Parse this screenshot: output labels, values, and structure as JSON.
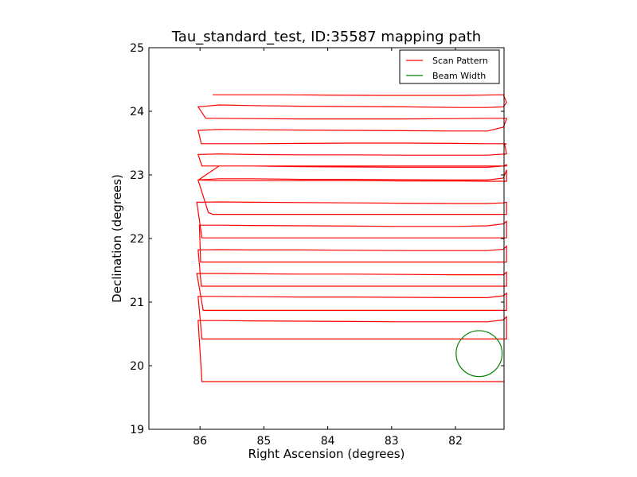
{
  "chart_data": {
    "type": "line",
    "title": "Tau_standard_test, ID:35587 mapping path",
    "xlabel": "Right Ascension (degrees)",
    "ylabel": "Declination (degrees)",
    "xlim": [
      86.8,
      81.24
    ],
    "ylim": [
      19,
      25
    ],
    "x_reversed": true,
    "xticks": [
      86,
      85,
      84,
      83,
      82
    ],
    "yticks": [
      19,
      20,
      21,
      22,
      23,
      24,
      25
    ],
    "grid": false,
    "legend_position": "top-right",
    "series": [
      {
        "name": "Scan Pattern",
        "color": "#ff0000",
        "x": [
          85.8,
          85.5,
          84.8,
          84.0,
          83.2,
          82.4,
          81.9,
          81.24,
          81.25,
          81.2,
          81.25,
          81.5,
          82.0,
          82.8,
          83.6,
          84.4,
          85.2,
          85.7,
          86.03,
          85.91,
          85.8,
          85.2,
          84.4,
          83.6,
          82.8,
          82.0,
          81.5,
          81.28,
          81.2,
          81.2,
          81.25,
          81.5,
          82.0,
          82.8,
          83.6,
          84.4,
          85.2,
          85.7,
          86.03,
          85.98,
          85.8,
          85.2,
          84.4,
          83.6,
          82.8,
          82.0,
          81.5,
          81.25,
          81.2,
          81.23,
          81.2,
          81.5,
          82.0,
          82.8,
          83.6,
          84.4,
          85.2,
          85.7,
          86.03,
          85.97,
          85.8,
          85.2,
          84.4,
          83.6,
          82.8,
          82.0,
          81.5,
          81.26,
          81.2,
          81.2,
          81.25,
          81.5,
          82.0,
          82.8,
          83.6,
          84.4,
          85.2,
          85.7,
          86.01,
          86.0,
          85.8,
          85.2,
          84.4,
          83.6,
          82.8,
          82.0,
          81.5,
          81.25,
          81.2,
          81.2,
          81.25,
          81.5,
          82.0,
          82.8,
          83.6,
          84.4,
          85.2,
          85.7,
          86.03,
          85.87,
          85.8,
          85.2,
          84.4,
          83.6,
          82.8,
          82.0,
          81.5,
          81.25,
          81.2,
          81.2,
          81.25,
          81.5,
          82.0,
          82.8,
          83.6,
          84.4,
          85.2,
          85.7,
          86.05,
          85.97,
          85.8,
          85.2,
          84.4,
          83.6,
          82.8,
          82.0,
          81.5,
          81.25,
          81.2,
          81.2,
          81.25,
          81.5,
          82.0,
          82.8,
          83.6,
          84.4,
          85.2,
          85.7,
          86.01,
          85.99,
          85.8,
          85.2,
          84.4,
          83.6,
          82.8,
          82.0,
          81.5,
          81.25,
          81.2,
          81.2,
          81.25,
          81.5,
          82.0,
          82.8,
          83.6,
          84.4,
          85.2,
          85.7,
          86.03,
          85.98,
          85.8,
          85.2,
          84.4,
          83.6,
          82.8,
          82.0,
          81.5,
          81.25,
          81.2,
          81.2,
          81.25,
          81.5,
          82.0,
          82.8,
          83.6,
          84.4,
          85.2,
          85.7,
          86.05,
          85.95,
          85.8,
          85.2,
          84.4,
          83.6,
          82.8,
          82.0,
          81.5,
          81.25,
          81.2,
          81.2,
          81.25,
          81.5,
          82.0,
          82.8,
          83.6,
          84.4,
          85.2,
          85.7,
          86.03,
          85.97,
          85.8,
          85.2,
          84.4,
          83.6,
          82.8,
          82.0,
          81.5,
          81.25,
          81.2,
          81.2,
          81.25,
          81.5,
          82.0,
          82.8,
          83.6,
          84.4,
          85.2,
          85.7,
          86.03,
          85.97,
          85.8,
          85.2,
          84.4,
          83.6,
          82.8,
          82.0,
          81.5,
          81.24
        ],
        "y": [
          24.26,
          24.26,
          24.26,
          24.255,
          24.25,
          24.25,
          24.25,
          24.26,
          24.26,
          24.14,
          24.07,
          24.06,
          24.06,
          24.07,
          24.075,
          24.08,
          24.09,
          24.1,
          24.07,
          23.89,
          23.89,
          23.885,
          23.88,
          23.88,
          23.88,
          23.885,
          23.89,
          23.89,
          23.89,
          23.88,
          23.75,
          23.69,
          23.69,
          23.695,
          23.7,
          23.705,
          23.71,
          23.715,
          23.7,
          23.49,
          23.49,
          23.49,
          23.495,
          23.5,
          23.5,
          23.495,
          23.49,
          23.49,
          23.49,
          23.48,
          23.33,
          23.31,
          23.31,
          23.31,
          23.315,
          23.315,
          23.32,
          23.33,
          23.32,
          23.14,
          23.14,
          23.14,
          23.14,
          23.14,
          23.14,
          23.14,
          23.14,
          23.14,
          23.14,
          23.16,
          23.14,
          23.12,
          23.12,
          23.12,
          23.125,
          23.13,
          23.14,
          23.14,
          22.93,
          22.92,
          22.91,
          22.91,
          22.91,
          22.91,
          22.905,
          22.905,
          22.9,
          22.9,
          22.9,
          23.08,
          22.95,
          22.92,
          22.92,
          22.925,
          22.93,
          22.93,
          22.94,
          22.94,
          22.92,
          22.41,
          22.38,
          22.38,
          22.38,
          22.38,
          22.38,
          22.38,
          22.38,
          22.38,
          22.38,
          22.57,
          22.56,
          22.55,
          22.55,
          22.555,
          22.56,
          22.565,
          22.57,
          22.575,
          22.57,
          22.01,
          22.01,
          22.01,
          22.01,
          22.01,
          22.01,
          22.01,
          22.01,
          22.01,
          22.01,
          22.27,
          22.23,
          22.2,
          22.19,
          22.19,
          22.195,
          22.2,
          22.205,
          22.21,
          22.21,
          21.63,
          21.63,
          21.63,
          21.63,
          21.63,
          21.63,
          21.63,
          21.63,
          21.63,
          21.63,
          21.88,
          21.83,
          21.81,
          21.81,
          21.81,
          21.815,
          21.82,
          21.82,
          21.825,
          21.82,
          21.25,
          21.25,
          21.25,
          21.25,
          21.25,
          21.25,
          21.25,
          21.25,
          21.25,
          21.25,
          21.47,
          21.43,
          21.43,
          21.43,
          21.435,
          21.44,
          21.44,
          21.445,
          21.45,
          21.45,
          20.87,
          20.87,
          20.87,
          20.87,
          20.87,
          20.87,
          20.87,
          20.87,
          20.87,
          20.87,
          21.14,
          21.1,
          21.07,
          21.07,
          21.075,
          21.08,
          21.08,
          21.085,
          21.09,
          21.09,
          20.42,
          20.42,
          20.42,
          20.42,
          20.42,
          20.42,
          20.42,
          20.42,
          20.42,
          20.42,
          20.77,
          20.72,
          20.69,
          20.69,
          20.69,
          20.695,
          20.7,
          20.705,
          20.71,
          20.71,
          19.75,
          19.75,
          19.75,
          19.75,
          19.75,
          19.75,
          19.75,
          19.75,
          19.75
        ]
      }
    ],
    "beam": {
      "name": "Beam Width",
      "color": "#008000",
      "center_x": 81.63,
      "center_y": 20.19,
      "radius_deg": 0.36
    }
  }
}
